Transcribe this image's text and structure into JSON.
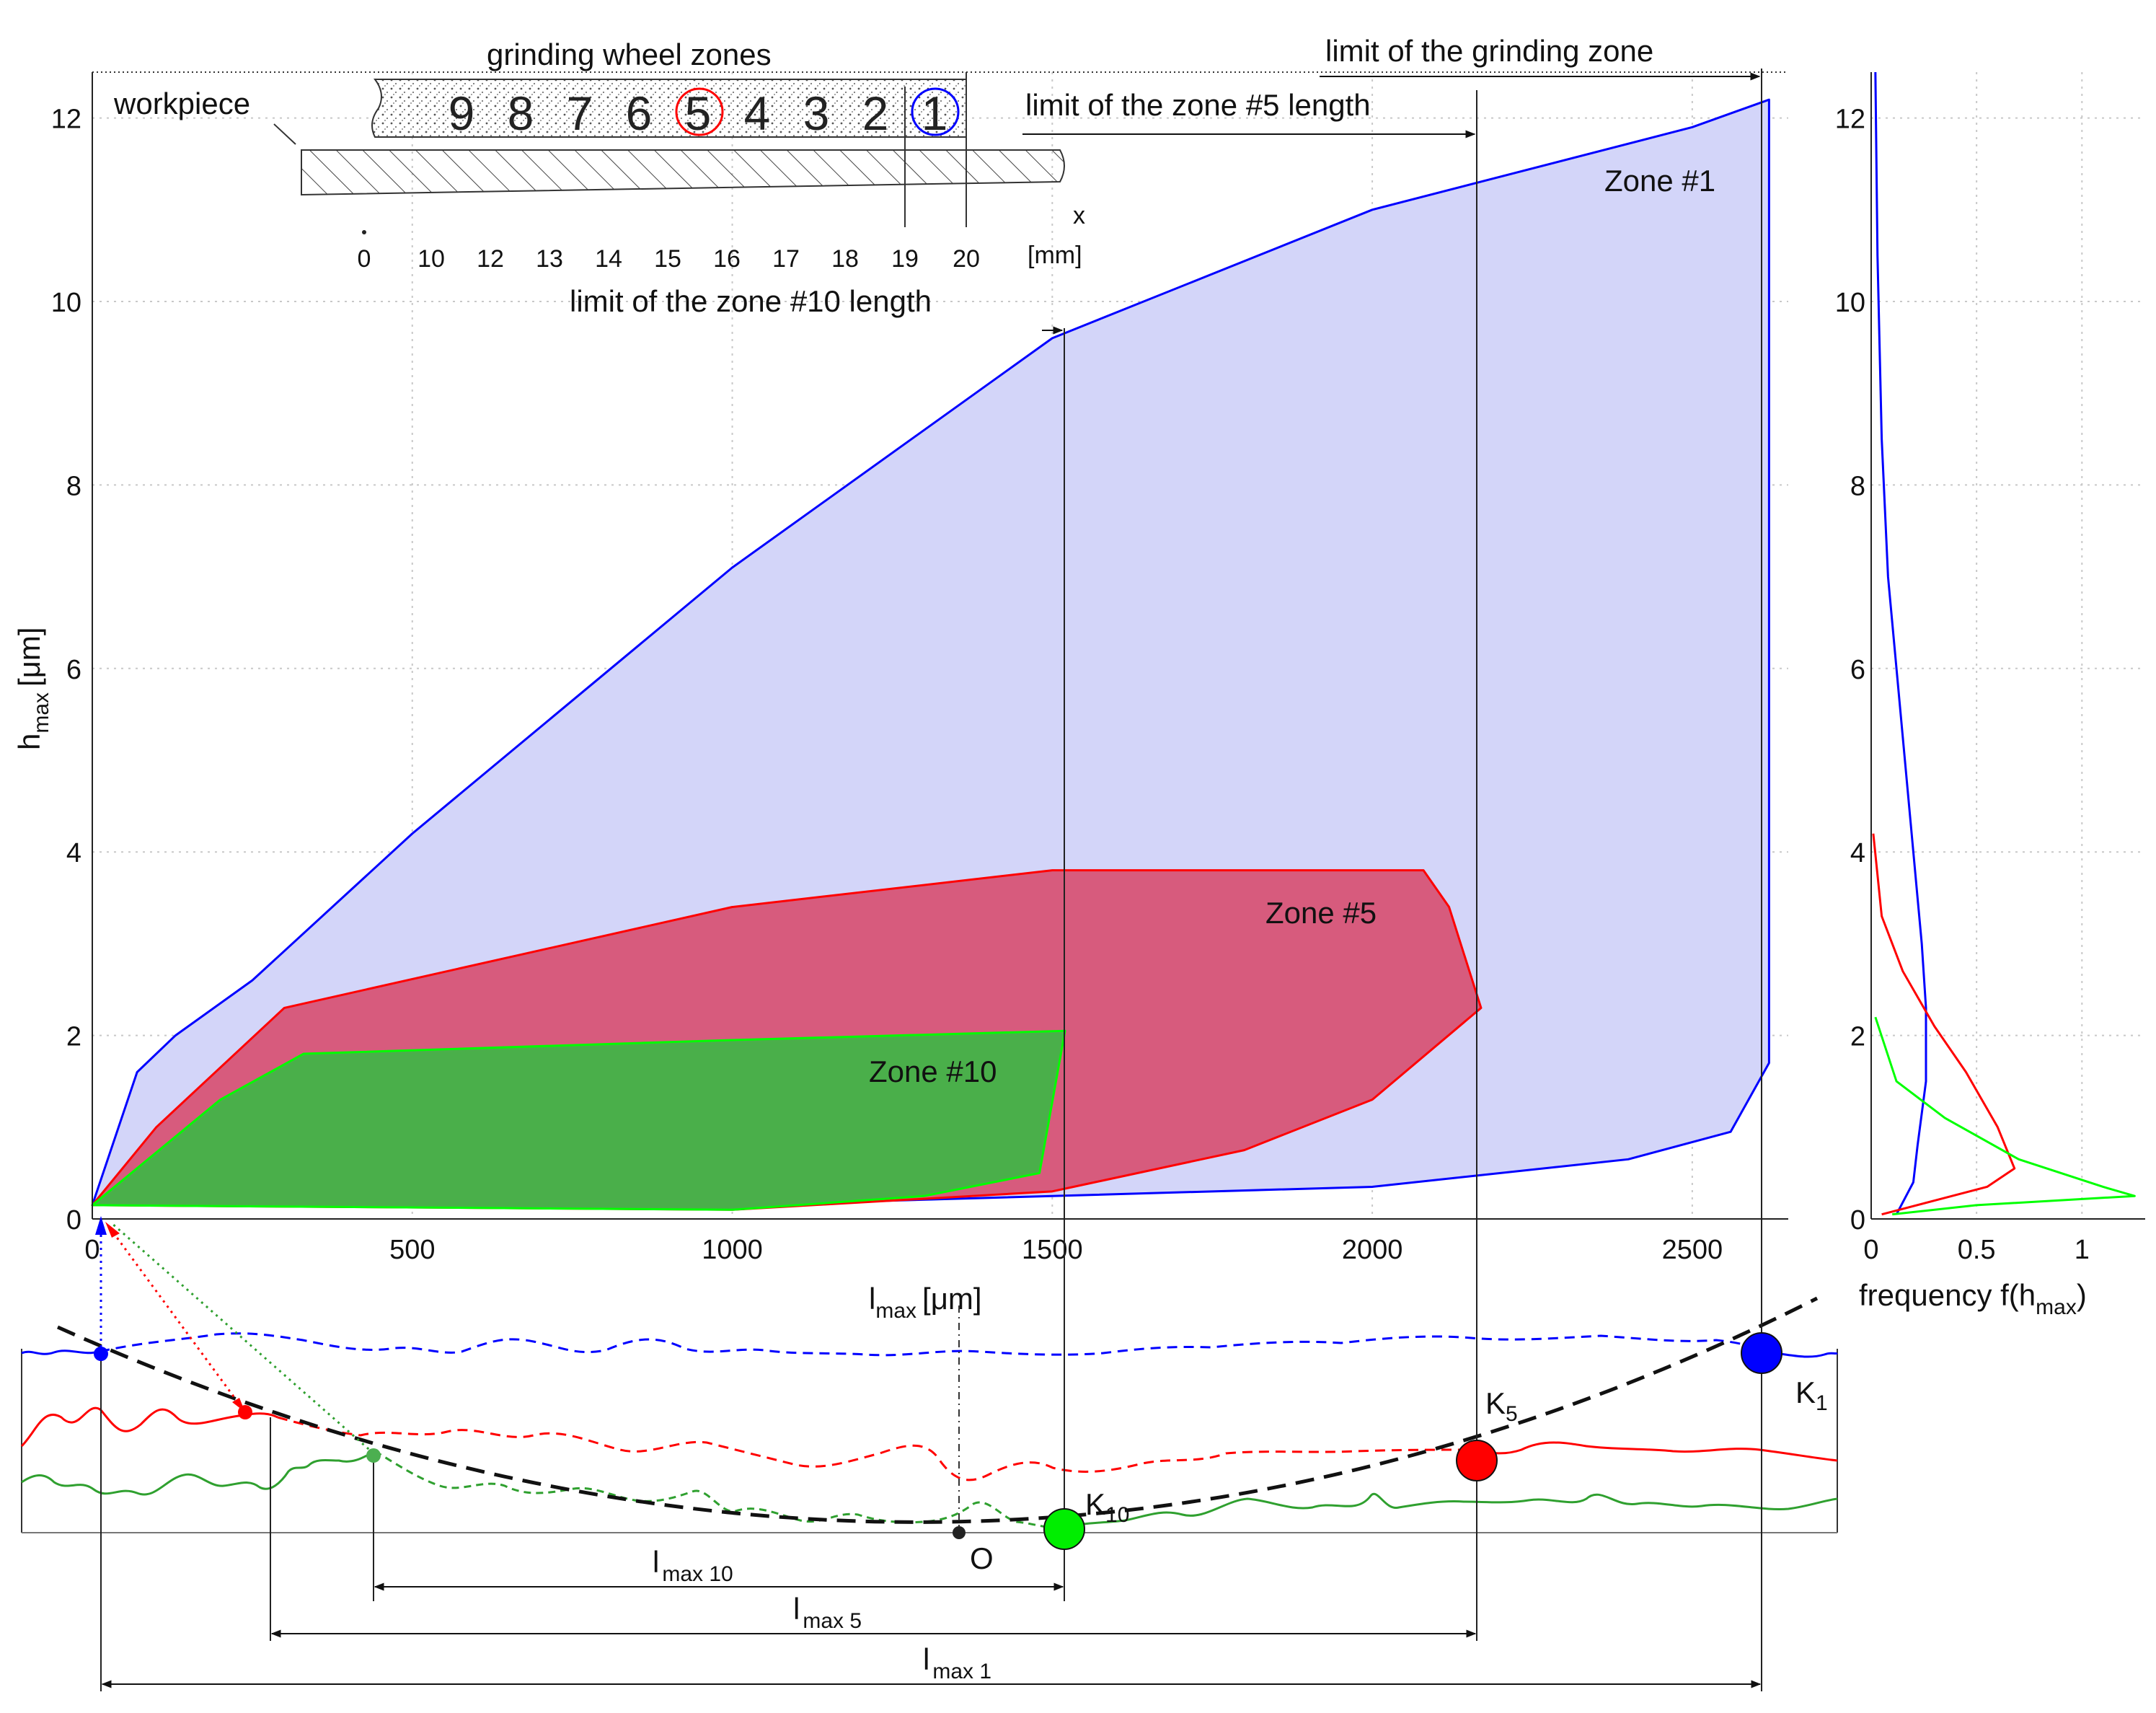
{
  "chart_data": [
    {
      "type": "area",
      "xlabel": "l",
      "xlabel_sub": "max",
      "xlabel_unit": "[μm]",
      "ylabel": "h",
      "ylabel_sub": "max",
      "ylabel_unit": "[μm]",
      "xlim": [
        0,
        2650
      ],
      "ylim": [
        0,
        12.5
      ],
      "xticks": [
        "0",
        "500",
        "1000",
        "1500",
        "2000",
        "2500"
      ],
      "yticks": [
        "0",
        "2",
        "4",
        "6",
        "8",
        "10",
        "12"
      ],
      "grid": true,
      "series": [
        {
          "name": "Zone #1",
          "color": "#0000ff",
          "fill": "#d3d5f9",
          "upper": [
            [
              0,
              0.15
            ],
            [
              70,
              1.6
            ],
            [
              130,
              2.0
            ],
            [
              250,
              2.6
            ],
            [
              500,
              4.2
            ],
            [
              1000,
              7.1
            ],
            [
              1500,
              9.6
            ],
            [
              2000,
              11.0
            ],
            [
              2500,
              11.9
            ],
            [
              2620,
              12.2
            ]
          ],
          "lower": [
            [
              0,
              0.15
            ],
            [
              1000,
              0.15
            ],
            [
              2000,
              0.35
            ],
            [
              2400,
              0.65
            ],
            [
              2560,
              0.95
            ],
            [
              2620,
              1.7
            ]
          ]
        },
        {
          "name": "Zone #5",
          "color": "#ff0000",
          "fill": "#d75b7d",
          "upper": [
            [
              0,
              0.15
            ],
            [
              100,
              1.0
            ],
            [
              300,
              2.3
            ],
            [
              1000,
              3.4
            ],
            [
              1500,
              3.8
            ],
            [
              2080,
              3.8
            ],
            [
              2120,
              3.4
            ],
            [
              2170,
              2.3
            ]
          ],
          "lower": [
            [
              0,
              0.15
            ],
            [
              1000,
              0.1
            ],
            [
              1500,
              0.3
            ],
            [
              1800,
              0.75
            ],
            [
              2000,
              1.3
            ],
            [
              2170,
              2.3
            ]
          ]
        },
        {
          "name": "Zone #10",
          "color": "#00ff00",
          "fill": "#4aaf4a",
          "upper": [
            [
              0,
              0.15
            ],
            [
              200,
              1.3
            ],
            [
              330,
              1.8
            ],
            [
              1000,
              1.95
            ],
            [
              1520,
              2.05
            ]
          ],
          "lower": [
            [
              0,
              0.15
            ],
            [
              1000,
              0.1
            ],
            [
              1300,
              0.25
            ],
            [
              1480,
              0.5
            ],
            [
              1520,
              2.05
            ]
          ]
        }
      ],
      "annotations": {
        "limit_grinding_zone": {
          "text": "limit of the grinding zone",
          "x": 2620
        },
        "limit_zone5": {
          "text": "limit of the zone #5 length",
          "x": 2170
        },
        "limit_zone10": {
          "text": "limit of the zone #10 length",
          "x": 1520
        }
      }
    },
    {
      "type": "line",
      "xlabel": "frequency f(h",
      "xlabel_sub": "max",
      "xlabel_end": ")",
      "xlim": [
        0,
        1.3
      ],
      "ylim": [
        0,
        12.5
      ],
      "xticks": [
        "0",
        "0.5",
        "1"
      ],
      "yticks": [
        "0",
        "2",
        "4",
        "6",
        "8",
        "10",
        "12"
      ],
      "series": [
        {
          "name": "Zone #1",
          "color": "#0000ff",
          "x": [
            0.12,
            0.2,
            0.22,
            0.26,
            0.26,
            0.24,
            0.2,
            0.16,
            0.12,
            0.08,
            0.05,
            0.03,
            0.02
          ],
          "y": [
            0.05,
            0.4,
            0.8,
            1.5,
            2.3,
            3.0,
            4.0,
            5.0,
            6.0,
            7.0,
            8.5,
            10.5,
            12.5
          ]
        },
        {
          "name": "Zone #5",
          "color": "#ff0000",
          "x": [
            0.05,
            0.3,
            0.55,
            0.68,
            0.6,
            0.45,
            0.3,
            0.15,
            0.05,
            0.01
          ],
          "y": [
            0.05,
            0.2,
            0.35,
            0.55,
            1.0,
            1.6,
            2.1,
            2.7,
            3.3,
            4.2
          ]
        },
        {
          "name": "Zone #10",
          "color": "#00ff00",
          "x": [
            0.1,
            0.5,
            1.25,
            1.1,
            0.7,
            0.35,
            0.12,
            0.02
          ],
          "y": [
            0.05,
            0.15,
            0.25,
            0.35,
            0.65,
            1.1,
            1.5,
            2.2
          ]
        }
      ]
    }
  ],
  "inset": {
    "title": "grinding wheel zones",
    "workpiece_label": "workpiece",
    "zone_numbers": [
      "9",
      "8",
      "7",
      "6",
      "5",
      "4",
      "3",
      "2",
      "1"
    ],
    "scale_ticks": [
      "0",
      "10",
      "12",
      "13",
      "14",
      "15",
      "16",
      "17",
      "18",
      "19",
      "20"
    ],
    "axis_x": "x",
    "axis_unit": "[mm]"
  },
  "zone_labels": {
    "zone1": "Zone #1",
    "zone5": "Zone #5",
    "zone10": "Zone #10"
  },
  "bottom": {
    "points": {
      "k1": "K",
      "k1_sub": "1",
      "k5": "K",
      "k5_sub": "5",
      "k10": "K",
      "k10_sub": "10",
      "o": "O"
    },
    "dims": {
      "l10": "l",
      "l10_sub": "max 10",
      "l5": "l",
      "l5_sub": "max 5",
      "l1": "l",
      "l1_sub": "max 1"
    }
  }
}
